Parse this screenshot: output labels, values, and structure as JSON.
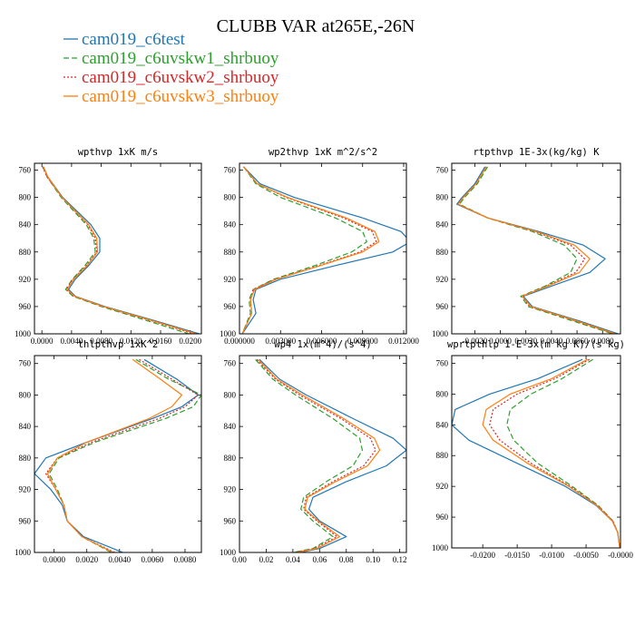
{
  "figure_title": "CLUBB VAR at265E,-26N",
  "legend": [
    {
      "name": "cam019_c6test",
      "color": "#1f77b4",
      "dash": "solid"
    },
    {
      "name": "cam019_c6uvskw1_shrbuoy",
      "color": "#2ca02c",
      "dash": "longdash"
    },
    {
      "name": "cam019_c6uvskw2_shrbuoy",
      "color": "#d62728",
      "dash": "dot"
    },
    {
      "name": "cam019_c6uvskw3_shrbuoy",
      "color": "#ff7f0e",
      "dash": "solid"
    }
  ],
  "chart_data": [
    {
      "type": "line",
      "title": "wpthvp  1xK m/s",
      "xlim": [
        -0.001,
        0.0215
      ],
      "ylim": [
        1000,
        750
      ],
      "x_ticks": [
        {
          "v": 0.0,
          "label": "0.0000"
        },
        {
          "v": 0.004,
          "label": "0.0040"
        },
        {
          "v": 0.008,
          "label": "0.0080"
        },
        {
          "v": 0.012,
          "label": "0.0120"
        },
        {
          "v": 0.016,
          "label": "0.0160"
        },
        {
          "v": 0.02,
          "label": "0.0200"
        }
      ],
      "y_ticks": [
        {
          "v": 760,
          "label": "760"
        },
        {
          "v": 800,
          "label": "800"
        },
        {
          "v": 840,
          "label": "840"
        },
        {
          "v": 880,
          "label": "880"
        },
        {
          "v": 920,
          "label": "920"
        },
        {
          "v": 960,
          "label": "960"
        },
        {
          "v": 1000,
          "label": "1000"
        }
      ],
      "y": [
        755,
        770,
        800,
        840,
        860,
        880,
        900,
        920,
        935,
        945,
        960,
        980,
        1000
      ],
      "series": [
        {
          "name": "cam019_c6test",
          "values": [
            0.0002,
            0.0008,
            0.0028,
            0.0066,
            0.0078,
            0.0078,
            0.0063,
            0.0045,
            0.0036,
            0.0045,
            0.0085,
            0.015,
            0.0212
          ]
        },
        {
          "name": "cam019_c6uvskw1_shrbuoy",
          "values": [
            0.0001,
            0.0007,
            0.0026,
            0.006,
            0.007,
            0.0072,
            0.0058,
            0.0041,
            0.0032,
            0.0042,
            0.008,
            0.014,
            0.0198
          ]
        },
        {
          "name": "cam019_c6uvskw2_shrbuoy",
          "values": [
            0.0001,
            0.0007,
            0.0027,
            0.0062,
            0.0072,
            0.0074,
            0.006,
            0.0042,
            0.0033,
            0.0043,
            0.0082,
            0.0145,
            0.0205
          ]
        },
        {
          "name": "cam019_c6uvskw3_shrbuoy",
          "values": [
            0.0002,
            0.0008,
            0.0027,
            0.0063,
            0.0074,
            0.0075,
            0.0061,
            0.0043,
            0.0034,
            0.0044,
            0.0083,
            0.0147,
            0.0208
          ]
        }
      ]
    },
    {
      "type": "line",
      "title": "wp2thvp  1xK m^2/s^2",
      "xlim": [
        0.0,
        0.0122
      ],
      "ylim": [
        1000,
        750
      ],
      "x_ticks": [
        {
          "v": 0.0,
          "label": "0.000000"
        },
        {
          "v": 0.003,
          "label": "0.003000"
        },
        {
          "v": 0.006,
          "label": "0.006000"
        },
        {
          "v": 0.009,
          "label": "0.009000"
        },
        {
          "v": 0.012,
          "label": "0.012000"
        }
      ],
      "y_ticks": [
        {
          "v": 760,
          "label": "760"
        },
        {
          "v": 800,
          "label": "800"
        },
        {
          "v": 840,
          "label": "840"
        },
        {
          "v": 880,
          "label": "880"
        },
        {
          "v": 920,
          "label": "920"
        },
        {
          "v": 960,
          "label": "960"
        },
        {
          "v": 1000,
          "label": "1000"
        }
      ],
      "y": [
        755,
        780,
        800,
        830,
        850,
        865,
        880,
        900,
        920,
        935,
        950,
        970,
        1000
      ],
      "series": [
        {
          "name": "cam019_c6test",
          "values": [
            0.0003,
            0.0015,
            0.004,
            0.009,
            0.0118,
            0.0125,
            0.0112,
            0.007,
            0.003,
            0.0012,
            0.001,
            0.0012,
            0.0002
          ]
        },
        {
          "name": "cam019_c6uvskw1_shrbuoy",
          "values": [
            0.0003,
            0.0012,
            0.003,
            0.007,
            0.009,
            0.0093,
            0.0082,
            0.0055,
            0.0025,
            0.001,
            0.0007,
            0.0008,
            0.0002
          ]
        },
        {
          "name": "cam019_c6uvskw2_shrbuoy",
          "values": [
            0.0003,
            0.0013,
            0.0034,
            0.0076,
            0.0097,
            0.01,
            0.0088,
            0.0058,
            0.0026,
            0.001,
            0.0008,
            0.0009,
            0.0002
          ]
        },
        {
          "name": "cam019_c6uvskw3_shrbuoy",
          "values": [
            0.0003,
            0.0013,
            0.0035,
            0.0078,
            0.0099,
            0.0102,
            0.009,
            0.0059,
            0.0027,
            0.0011,
            0.0008,
            0.0009,
            0.0002
          ]
        }
      ]
    },
    {
      "type": "line",
      "title": "rtpthvp  1E-3x(kg/kg) K",
      "xlim": [
        -0.0038,
        0.0094
      ],
      "ylim": [
        1000,
        750
      ],
      "x_ticks": [
        {
          "v": -0.002,
          "label": "-0.0020"
        },
        {
          "v": 0.0,
          "label": "0.0000"
        },
        {
          "v": 0.002,
          "label": "0.0020"
        },
        {
          "v": 0.004,
          "label": "0.0040"
        },
        {
          "v": 0.006,
          "label": "0.0060"
        },
        {
          "v": 0.008,
          "label": "0.0080"
        }
      ],
      "y_ticks": [
        {
          "v": 760,
          "label": "760"
        },
        {
          "v": 800,
          "label": "800"
        },
        {
          "v": 840,
          "label": "840"
        },
        {
          "v": 880,
          "label": "880"
        },
        {
          "v": 920,
          "label": "920"
        },
        {
          "v": 960,
          "label": "960"
        },
        {
          "v": 1000,
          "label": "1000"
        }
      ],
      "y": [
        755,
        780,
        800,
        810,
        830,
        850,
        870,
        890,
        910,
        930,
        945,
        960,
        980,
        1000
      ],
      "series": [
        {
          "name": "cam019_c6test",
          "values": [
            -0.0012,
            -0.002,
            -0.003,
            -0.0034,
            -0.001,
            0.003,
            0.0065,
            0.0082,
            0.007,
            0.004,
            0.0018,
            0.0025,
            0.006,
            0.0092
          ]
        },
        {
          "name": "cam019_c6uvskw1_shrbuoy",
          "values": [
            -0.001,
            -0.0018,
            -0.0028,
            -0.0032,
            -0.001,
            0.0025,
            0.005,
            0.006,
            0.0055,
            0.0035,
            0.0016,
            0.0022,
            0.0055,
            0.0088
          ]
        },
        {
          "name": "cam019_c6uvskw2_shrbuoy",
          "values": [
            -0.0011,
            -0.0019,
            -0.0029,
            -0.0033,
            -0.001,
            0.0027,
            0.0055,
            0.0066,
            0.0059,
            0.0036,
            0.0017,
            0.0023,
            0.0057,
            0.0089
          ]
        },
        {
          "name": "cam019_c6uvskw3_shrbuoy",
          "values": [
            -0.0011,
            -0.0019,
            -0.0029,
            -0.0033,
            -0.001,
            0.0028,
            0.0058,
            0.007,
            0.0062,
            0.0037,
            0.0017,
            0.0024,
            0.0058,
            0.009
          ]
        }
      ]
    },
    {
      "type": "line",
      "title": "thlpthvp  1xK^2",
      "xlim": [
        -0.0012,
        0.009
      ],
      "ylim": [
        1000,
        750
      ],
      "x_ticks": [
        {
          "v": 0.0,
          "label": "0.0000"
        },
        {
          "v": 0.002,
          "label": "0.0020"
        },
        {
          "v": 0.004,
          "label": "0.0040"
        },
        {
          "v": 0.006,
          "label": "0.0060"
        },
        {
          "v": 0.008,
          "label": "0.0080"
        }
      ],
      "y_ticks": [
        {
          "v": 760,
          "label": "760"
        },
        {
          "v": 800,
          "label": "800"
        },
        {
          "v": 840,
          "label": "840"
        },
        {
          "v": 880,
          "label": "880"
        },
        {
          "v": 920,
          "label": "920"
        },
        {
          "v": 960,
          "label": "960"
        },
        {
          "v": 1000,
          "label": "1000"
        }
      ],
      "y": [
        755,
        780,
        800,
        815,
        830,
        860,
        880,
        900,
        920,
        940,
        960,
        980,
        1000
      ],
      "series": [
        {
          "name": "cam019_c6test",
          "values": [
            0.0055,
            0.0075,
            0.0088,
            0.0078,
            0.006,
            0.002,
            -0.0005,
            -0.0012,
            -0.0002,
            0.0005,
            0.0008,
            0.0018,
            0.0042
          ]
        },
        {
          "name": "cam019_c6uvskw1_shrbuoy",
          "values": [
            0.005,
            0.007,
            0.009,
            0.0085,
            0.0068,
            0.0025,
            0.0003,
            -0.0003,
            0.0002,
            0.0006,
            0.0008,
            0.0017,
            0.0035
          ]
        },
        {
          "name": "cam019_c6uvskw2_shrbuoy",
          "values": [
            0.0052,
            0.0072,
            0.0088,
            0.008,
            0.0064,
            0.0023,
            0.0002,
            -0.0005,
            0.0001,
            0.0006,
            0.0008,
            0.0017,
            0.0037
          ]
        },
        {
          "name": "cam019_c6uvskw3_shrbuoy",
          "values": [
            0.0048,
            0.0065,
            0.0078,
            0.0072,
            0.0058,
            0.002,
            0.0002,
            -0.0004,
            0.0001,
            0.0006,
            0.0008,
            0.0017,
            0.0036
          ]
        }
      ]
    },
    {
      "type": "line",
      "title": "wp4  1x(m^4)/(s^4)",
      "xlim": [
        0.0,
        0.125
      ],
      "ylim": [
        1000,
        750
      ],
      "x_ticks": [
        {
          "v": 0.0,
          "label": "0.00"
        },
        {
          "v": 0.02,
          "label": "0.02"
        },
        {
          "v": 0.04,
          "label": "0.04"
        },
        {
          "v": 0.06,
          "label": "0.06"
        },
        {
          "v": 0.08,
          "label": "0.08"
        },
        {
          "v": 0.1,
          "label": "0.10"
        },
        {
          "v": 0.12,
          "label": "0.12"
        }
      ],
      "y_ticks": [
        {
          "v": 760,
          "label": "760"
        },
        {
          "v": 800,
          "label": "800"
        },
        {
          "v": 840,
          "label": "840"
        },
        {
          "v": 880,
          "label": "880"
        },
        {
          "v": 920,
          "label": "920"
        },
        {
          "v": 960,
          "label": "960"
        },
        {
          "v": 1000,
          "label": "1000"
        }
      ],
      "y": [
        755,
        780,
        800,
        830,
        855,
        870,
        890,
        910,
        930,
        945,
        960,
        980,
        995,
        1000
      ],
      "series": [
        {
          "name": "cam019_c6test",
          "values": [
            0.015,
            0.03,
            0.05,
            0.085,
            0.115,
            0.125,
            0.11,
            0.08,
            0.055,
            0.052,
            0.06,
            0.08,
            0.06,
            0.045
          ]
        },
        {
          "name": "cam019_c6uvskw1_shrbuoy",
          "values": [
            0.012,
            0.025,
            0.042,
            0.07,
            0.09,
            0.092,
            0.085,
            0.065,
            0.048,
            0.046,
            0.055,
            0.07,
            0.055,
            0.04
          ]
        },
        {
          "name": "cam019_c6uvskw2_shrbuoy",
          "values": [
            0.013,
            0.027,
            0.045,
            0.076,
            0.098,
            0.102,
            0.093,
            0.07,
            0.05,
            0.048,
            0.058,
            0.073,
            0.056,
            0.041
          ]
        },
        {
          "name": "cam019_c6uvskw3_shrbuoy",
          "values": [
            0.014,
            0.028,
            0.047,
            0.078,
            0.101,
            0.105,
            0.096,
            0.072,
            0.051,
            0.049,
            0.059,
            0.075,
            0.058,
            0.043
          ]
        }
      ]
    },
    {
      "type": "line",
      "title": "wprtpthlp  1-E-3x(m kg K)/(s kg)",
      "xlim": [
        -0.0245,
        0.0
      ],
      "ylim": [
        1000,
        750
      ],
      "x_ticks": [
        {
          "v": -0.02,
          "label": "-0.0200"
        },
        {
          "v": -0.015,
          "label": "-0.0150"
        },
        {
          "v": -0.01,
          "label": "-0.0100"
        },
        {
          "v": -0.005,
          "label": "-0.0050"
        },
        {
          "v": 0.0,
          "label": "-0.0000"
        }
      ],
      "y_ticks": [
        {
          "v": 760,
          "label": "760"
        },
        {
          "v": 800,
          "label": "800"
        },
        {
          "v": 840,
          "label": "840"
        },
        {
          "v": 880,
          "label": "880"
        },
        {
          "v": 920,
          "label": "920"
        },
        {
          "v": 960,
          "label": "960"
        },
        {
          "v": 1000,
          "label": "1000"
        }
      ],
      "y": [
        755,
        780,
        800,
        820,
        840,
        860,
        890,
        920,
        945,
        965,
        980,
        1000
      ],
      "series": [
        {
          "name": "cam019_c6test",
          "values": [
            -0.0055,
            -0.012,
            -0.019,
            -0.024,
            -0.0245,
            -0.022,
            -0.015,
            -0.008,
            -0.0035,
            -0.0012,
            -0.0004,
            -0.0001
          ]
        },
        {
          "name": "cam019_c6uvskw1_shrbuoy",
          "values": [
            -0.004,
            -0.0085,
            -0.013,
            -0.016,
            -0.0165,
            -0.0155,
            -0.012,
            -0.007,
            -0.0032,
            -0.0011,
            -0.0004,
            -0.0001
          ]
        },
        {
          "name": "cam019_c6uvskw2_shrbuoy",
          "values": [
            -0.0045,
            -0.0095,
            -0.015,
            -0.0185,
            -0.019,
            -0.0175,
            -0.013,
            -0.0073,
            -0.0033,
            -0.0011,
            -0.0004,
            -0.0001
          ]
        },
        {
          "name": "cam019_c6uvskw3_shrbuoy",
          "values": [
            -0.0048,
            -0.01,
            -0.016,
            -0.0195,
            -0.02,
            -0.0185,
            -0.0135,
            -0.0075,
            -0.0034,
            -0.0012,
            -0.0004,
            -0.0001
          ]
        }
      ]
    }
  ]
}
